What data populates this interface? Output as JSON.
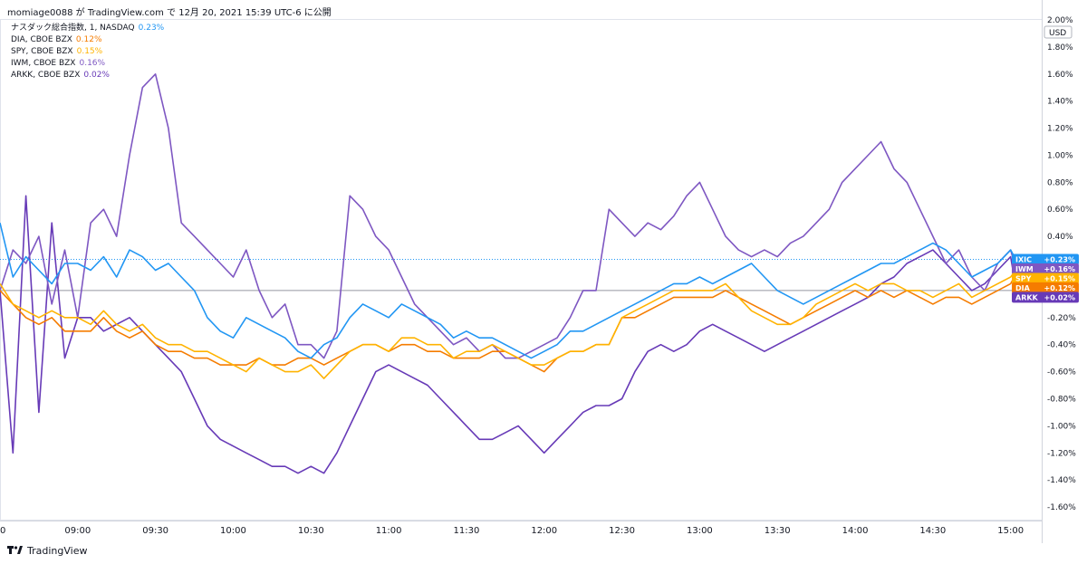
{
  "caption": "momiage0088 が TradingView.com で 12月 20, 2021 15:39 UTC-6 に公開",
  "footer": {
    "brand": "TradingView",
    "logo_icon": "tradingview-logo-icon"
  },
  "chart_data": {
    "type": "line",
    "unit_label": "USD",
    "ylim": [
      -1.7,
      2.0
    ],
    "y_ticks": [
      "2.00%",
      "1.80%",
      "1.60%",
      "1.40%",
      "1.20%",
      "1.00%",
      "0.80%",
      "0.60%",
      "0.40%",
      "0.20%",
      "-0.20%",
      "-0.40%",
      "-0.60%",
      "-0.80%",
      "-1.00%",
      "-1.20%",
      "-1.40%",
      "-1.60%"
    ],
    "y_tick_values": [
      2.0,
      1.8,
      1.6,
      1.4,
      1.2,
      1.0,
      0.8,
      0.6,
      0.4,
      0.2,
      -0.2,
      -0.4,
      -0.6,
      -0.8,
      -1.0,
      -1.2,
      -1.4,
      -1.6
    ],
    "x_ticks": [
      "0",
      "09:00",
      "09:30",
      "10:00",
      "10:30",
      "11:00",
      "11:30",
      "12:00",
      "12:30",
      "13:00",
      "13:30",
      "14:00",
      "14:30",
      "15:00"
    ],
    "x_tick_minutes": [
      -30,
      0,
      30,
      60,
      90,
      120,
      150,
      180,
      210,
      240,
      270,
      300,
      330,
      360
    ],
    "xlim_minutes": [
      -30,
      372
    ],
    "legend": [
      {
        "name": "ナスダック総合指数, 1, NASDAQ",
        "pct": "0.23%",
        "color": "#2196f3"
      },
      {
        "name": "DIA, CBOE BZX",
        "pct": "0.12%",
        "color": "#f57c00"
      },
      {
        "name": "SPY, CBOE BZX",
        "pct": "0.15%",
        "color": "#ffb300"
      },
      {
        "name": "IWM, CBOE BZX",
        "pct": "0.16%",
        "color": "#7e57c2"
      },
      {
        "name": "ARKK, CBOE BZX",
        "pct": "0.02%",
        "color": "#673ab7"
      }
    ],
    "tags": [
      {
        "label": "IXIC",
        "value": "+0.23%",
        "y": 0.23,
        "color": "#2196f3"
      },
      {
        "label": "IWM",
        "value": "+0.16%",
        "y": 0.16,
        "color": "#7e57c2"
      },
      {
        "label": "SPY",
        "value": "+0.15%",
        "y": 0.09,
        "color": "#ffb300"
      },
      {
        "label": "DIA",
        "value": "+0.12%",
        "y": 0.02,
        "color": "#f57c00"
      },
      {
        "label": "ARKK",
        "value": "+0.02%",
        "y": -0.05,
        "color": "#673ab7"
      }
    ],
    "series": [
      {
        "name": "IXIC",
        "color": "#2196f3",
        "x": [
          -30,
          -25,
          -20,
          -15,
          -10,
          -5,
          0,
          5,
          10,
          15,
          20,
          25,
          30,
          35,
          40,
          45,
          50,
          55,
          60,
          65,
          70,
          75,
          80,
          85,
          90,
          95,
          100,
          105,
          110,
          115,
          120,
          125,
          130,
          135,
          140,
          145,
          150,
          155,
          160,
          165,
          170,
          175,
          180,
          185,
          190,
          195,
          200,
          205,
          210,
          215,
          220,
          225,
          230,
          235,
          240,
          245,
          250,
          255,
          260,
          265,
          270,
          275,
          280,
          285,
          290,
          295,
          300,
          305,
          310,
          315,
          320,
          325,
          330,
          335,
          340,
          345,
          350,
          355,
          360,
          362
        ],
        "y": [
          0.5,
          0.1,
          0.25,
          0.15,
          0.05,
          0.2,
          0.2,
          0.15,
          0.25,
          0.1,
          0.3,
          0.25,
          0.15,
          0.2,
          0.1,
          0.0,
          -0.2,
          -0.3,
          -0.35,
          -0.2,
          -0.25,
          -0.3,
          -0.35,
          -0.45,
          -0.5,
          -0.4,
          -0.35,
          -0.2,
          -0.1,
          -0.15,
          -0.2,
          -0.1,
          -0.15,
          -0.2,
          -0.25,
          -0.35,
          -0.3,
          -0.35,
          -0.35,
          -0.4,
          -0.45,
          -0.5,
          -0.45,
          -0.4,
          -0.3,
          -0.3,
          -0.25,
          -0.2,
          -0.15,
          -0.1,
          -0.05,
          0.0,
          0.05,
          0.05,
          0.1,
          0.05,
          0.1,
          0.15,
          0.2,
          0.1,
          0.0,
          -0.05,
          -0.1,
          -0.05,
          0.0,
          0.05,
          0.1,
          0.15,
          0.2,
          0.2,
          0.25,
          0.3,
          0.35,
          0.3,
          0.2,
          0.1,
          0.15,
          0.2,
          0.3,
          0.23
        ]
      },
      {
        "name": "DIA",
        "color": "#f57c00",
        "x": [
          -30,
          -25,
          -20,
          -15,
          -10,
          -5,
          0,
          5,
          10,
          15,
          20,
          25,
          30,
          35,
          40,
          45,
          50,
          55,
          60,
          65,
          70,
          75,
          80,
          85,
          90,
          95,
          100,
          105,
          110,
          115,
          120,
          125,
          130,
          135,
          140,
          145,
          150,
          155,
          160,
          165,
          170,
          175,
          180,
          185,
          190,
          195,
          200,
          205,
          210,
          215,
          220,
          225,
          230,
          235,
          240,
          245,
          250,
          255,
          260,
          265,
          270,
          275,
          280,
          285,
          290,
          295,
          300,
          305,
          310,
          315,
          320,
          325,
          330,
          335,
          340,
          345,
          350,
          355,
          360,
          362
        ],
        "y": [
          0.0,
          -0.1,
          -0.2,
          -0.25,
          -0.2,
          -0.3,
          -0.3,
          -0.3,
          -0.2,
          -0.3,
          -0.35,
          -0.3,
          -0.4,
          -0.45,
          -0.45,
          -0.5,
          -0.5,
          -0.55,
          -0.55,
          -0.55,
          -0.5,
          -0.55,
          -0.55,
          -0.5,
          -0.5,
          -0.55,
          -0.5,
          -0.45,
          -0.4,
          -0.4,
          -0.45,
          -0.4,
          -0.4,
          -0.45,
          -0.45,
          -0.5,
          -0.5,
          -0.5,
          -0.45,
          -0.45,
          -0.5,
          -0.55,
          -0.6,
          -0.5,
          -0.45,
          -0.45,
          -0.4,
          -0.4,
          -0.2,
          -0.2,
          -0.15,
          -0.1,
          -0.05,
          -0.05,
          -0.05,
          -0.05,
          0.0,
          -0.05,
          -0.1,
          -0.15,
          -0.2,
          -0.25,
          -0.2,
          -0.15,
          -0.1,
          -0.05,
          0.0,
          -0.05,
          0.0,
          -0.05,
          0.0,
          -0.05,
          -0.1,
          -0.05,
          -0.05,
          -0.1,
          -0.05,
          0.0,
          0.05,
          0.12
        ]
      },
      {
        "name": "SPY",
        "color": "#ffb300",
        "x": [
          -30,
          -25,
          -20,
          -15,
          -10,
          -5,
          0,
          5,
          10,
          15,
          20,
          25,
          30,
          35,
          40,
          45,
          50,
          55,
          60,
          65,
          70,
          75,
          80,
          85,
          90,
          95,
          100,
          105,
          110,
          115,
          120,
          125,
          130,
          135,
          140,
          145,
          150,
          155,
          160,
          165,
          170,
          175,
          180,
          185,
          190,
          195,
          200,
          205,
          210,
          215,
          220,
          225,
          230,
          235,
          240,
          245,
          250,
          255,
          260,
          265,
          270,
          275,
          280,
          285,
          290,
          295,
          300,
          305,
          310,
          315,
          320,
          325,
          330,
          335,
          340,
          345,
          350,
          355,
          360,
          362
        ],
        "y": [
          0.05,
          -0.1,
          -0.15,
          -0.2,
          -0.15,
          -0.2,
          -0.2,
          -0.25,
          -0.15,
          -0.25,
          -0.3,
          -0.25,
          -0.35,
          -0.4,
          -0.4,
          -0.45,
          -0.45,
          -0.5,
          -0.55,
          -0.6,
          -0.5,
          -0.55,
          -0.6,
          -0.6,
          -0.55,
          -0.65,
          -0.55,
          -0.45,
          -0.4,
          -0.4,
          -0.45,
          -0.35,
          -0.35,
          -0.4,
          -0.4,
          -0.5,
          -0.45,
          -0.45,
          -0.4,
          -0.45,
          -0.5,
          -0.55,
          -0.55,
          -0.5,
          -0.45,
          -0.45,
          -0.4,
          -0.4,
          -0.2,
          -0.15,
          -0.1,
          -0.05,
          0.0,
          0.0,
          0.0,
          0.0,
          0.05,
          -0.05,
          -0.15,
          -0.2,
          -0.25,
          -0.25,
          -0.2,
          -0.1,
          -0.05,
          0.0,
          0.05,
          0.0,
          0.05,
          0.05,
          0.0,
          0.0,
          -0.05,
          0.0,
          0.05,
          -0.05,
          0.0,
          0.05,
          0.1,
          0.15
        ]
      },
      {
        "name": "IWM",
        "color": "#7e57c2",
        "x": [
          -30,
          -25,
          -20,
          -15,
          -10,
          -5,
          0,
          5,
          10,
          15,
          20,
          25,
          30,
          35,
          40,
          45,
          50,
          55,
          60,
          65,
          70,
          75,
          80,
          85,
          90,
          95,
          100,
          105,
          110,
          115,
          120,
          125,
          130,
          135,
          140,
          145,
          150,
          155,
          160,
          165,
          170,
          175,
          180,
          185,
          190,
          195,
          200,
          205,
          210,
          215,
          220,
          225,
          230,
          235,
          240,
          245,
          250,
          255,
          260,
          265,
          270,
          275,
          280,
          285,
          290,
          295,
          300,
          305,
          310,
          315,
          320,
          325,
          330,
          335,
          340,
          345,
          350,
          355,
          360,
          362
        ],
        "y": [
          0.0,
          0.3,
          0.2,
          0.4,
          -0.1,
          0.3,
          -0.2,
          0.5,
          0.6,
          0.4,
          1.0,
          1.5,
          1.6,
          1.2,
          0.5,
          0.4,
          0.3,
          0.2,
          0.1,
          0.3,
          0.0,
          -0.2,
          -0.1,
          -0.4,
          -0.4,
          -0.5,
          -0.3,
          0.7,
          0.6,
          0.4,
          0.3,
          0.1,
          -0.1,
          -0.2,
          -0.3,
          -0.4,
          -0.35,
          -0.45,
          -0.4,
          -0.5,
          -0.5,
          -0.45,
          -0.4,
          -0.35,
          -0.2,
          0.0,
          0.0,
          0.6,
          0.5,
          0.4,
          0.5,
          0.45,
          0.55,
          0.7,
          0.8,
          0.6,
          0.4,
          0.3,
          0.25,
          0.3,
          0.25,
          0.35,
          0.4,
          0.5,
          0.6,
          0.8,
          0.9,
          1.0,
          1.1,
          0.9,
          0.8,
          0.6,
          0.4,
          0.2,
          0.3,
          0.1,
          0.0,
          0.2,
          0.3,
          0.16
        ]
      },
      {
        "name": "ARKK",
        "color": "#673ab7",
        "x": [
          -30,
          -25,
          -20,
          -15,
          -10,
          -5,
          0,
          5,
          10,
          15,
          20,
          25,
          30,
          35,
          40,
          45,
          50,
          55,
          60,
          65,
          70,
          75,
          80,
          85,
          90,
          95,
          100,
          105,
          110,
          115,
          120,
          125,
          130,
          135,
          140,
          145,
          150,
          155,
          160,
          165,
          170,
          175,
          180,
          185,
          190,
          195,
          200,
          205,
          210,
          215,
          220,
          225,
          230,
          235,
          240,
          245,
          250,
          255,
          260,
          265,
          270,
          275,
          280,
          285,
          290,
          295,
          300,
          305,
          310,
          315,
          320,
          325,
          330,
          335,
          340,
          345,
          350,
          355,
          360,
          362
        ],
        "y": [
          0.0,
          -1.2,
          0.7,
          -0.9,
          0.5,
          -0.5,
          -0.2,
          -0.2,
          -0.3,
          -0.25,
          -0.2,
          -0.3,
          -0.4,
          -0.5,
          -0.6,
          -0.8,
          -1.0,
          -1.1,
          -1.15,
          -1.2,
          -1.25,
          -1.3,
          -1.3,
          -1.35,
          -1.3,
          -1.35,
          -1.2,
          -1.0,
          -0.8,
          -0.6,
          -0.55,
          -0.6,
          -0.65,
          -0.7,
          -0.8,
          -0.9,
          -1.0,
          -1.1,
          -1.1,
          -1.05,
          -1.0,
          -1.1,
          -1.2,
          -1.1,
          -1.0,
          -0.9,
          -0.85,
          -0.85,
          -0.8,
          -0.6,
          -0.45,
          -0.4,
          -0.45,
          -0.4,
          -0.3,
          -0.25,
          -0.3,
          -0.35,
          -0.4,
          -0.45,
          -0.4,
          -0.35,
          -0.3,
          -0.25,
          -0.2,
          -0.15,
          -0.1,
          -0.05,
          0.05,
          0.1,
          0.2,
          0.25,
          0.3,
          0.2,
          0.1,
          0.0,
          0.05,
          0.15,
          0.25,
          0.02
        ]
      }
    ]
  }
}
